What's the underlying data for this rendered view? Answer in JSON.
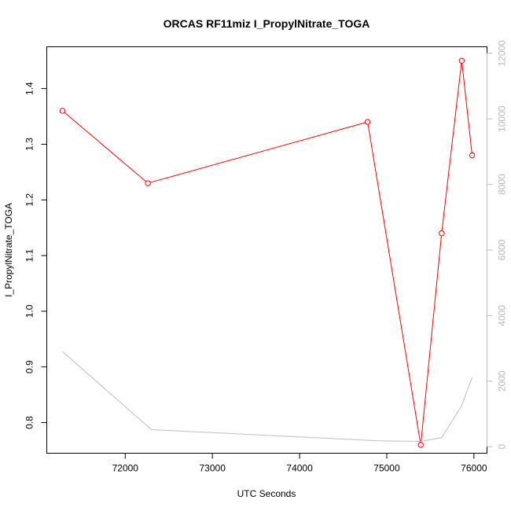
{
  "chart_data": {
    "type": "line",
    "title": "ORCAS RF11miz I_PropylNitrate_TOGA",
    "xlabel": "UTC Seconds",
    "ylabel": "I_PropylNitrate_TOGA",
    "xlim": [
      71100,
      76150
    ],
    "ylim": [
      0.745,
      1.475
    ],
    "y2lim": [
      -200,
      12200
    ],
    "grid": false,
    "colors": {
      "primary": "#ff0000",
      "secondary": "#bebebe",
      "axis": "#000000"
    },
    "x_ticks": [
      72000,
      73000,
      74000,
      75000,
      76000
    ],
    "y_ticks": [
      0.8,
      0.9,
      1.0,
      1.1,
      1.2,
      1.3,
      1.4
    ],
    "y_tick_labels": [
      "0.8",
      "0.9",
      "1.0",
      "1.1",
      "1.2",
      "1.3",
      "1.4"
    ],
    "y2_ticks": [
      0,
      2000,
      4000,
      6000,
      8000,
      10000,
      12000
    ],
    "series": [
      {
        "axis": "left",
        "style": "line+points",
        "x": [
          71280,
          72260,
          74780,
          75390,
          75630,
          75860,
          75980
        ],
        "values": [
          1.36,
          1.23,
          1.34,
          0.76,
          1.14,
          1.45,
          1.28
        ]
      },
      {
        "axis": "right",
        "style": "line",
        "x": [
          71280,
          72300,
          74900,
          75390,
          75630,
          75860,
          75980
        ],
        "values": [
          2900,
          520,
          180,
          160,
          280,
          1250,
          2120
        ]
      }
    ]
  }
}
